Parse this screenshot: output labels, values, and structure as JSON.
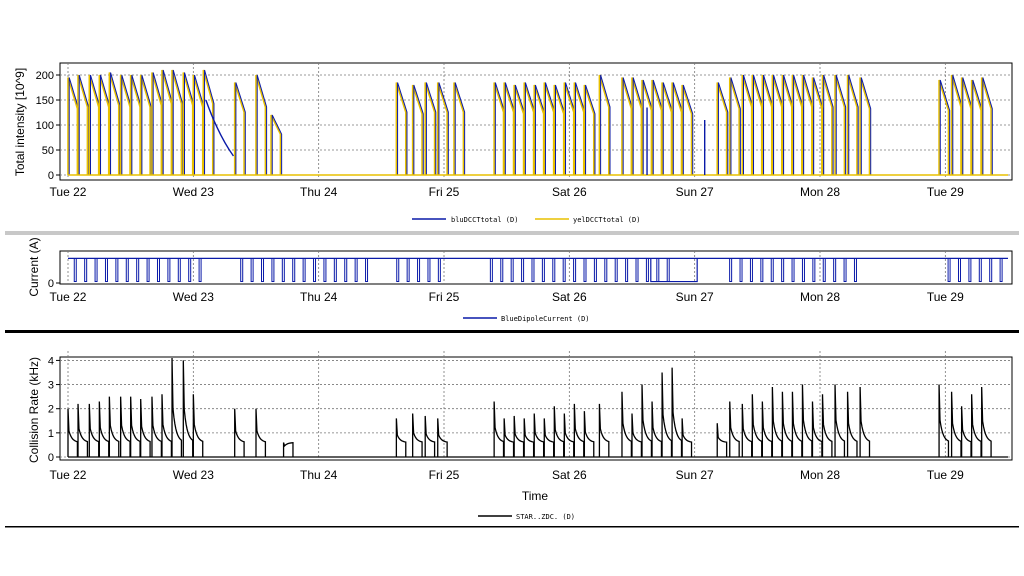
{
  "chart_data": [
    {
      "type": "line",
      "ylabel": "Total intensity [10^9]",
      "yticks": [
        "0",
        "50",
        "100",
        "150",
        "200"
      ],
      "ylim": [
        0,
        210
      ],
      "xlim": [
        0,
        7.5
      ],
      "xticks": [
        "Tue 22",
        "Wed 23",
        "Thu 24",
        "Fri 25",
        "Sat 26",
        "Sun 27",
        "Mon 28",
        "Tue 29"
      ],
      "grid": true,
      "legend_position": "bottom",
      "series": [
        {
          "name": "bluDCCTtotal (D)",
          "color": "#0a1aa8"
        },
        {
          "name": "yelDCCTtotal (D)",
          "color": "#e8c000"
        }
      ],
      "fills": [
        [
          0.0,
          195
        ],
        [
          0.08,
          200
        ],
        [
          0.17,
          200
        ],
        [
          0.25,
          200
        ],
        [
          0.33,
          205
        ],
        [
          0.42,
          200
        ],
        [
          0.5,
          200
        ],
        [
          0.58,
          200
        ],
        [
          0.67,
          205
        ],
        [
          0.75,
          210
        ],
        [
          0.83,
          210
        ],
        [
          0.92,
          205
        ],
        [
          1.0,
          200
        ],
        [
          1.08,
          210
        ],
        [
          1.33,
          185
        ],
        [
          1.5,
          200
        ],
        [
          1.62,
          120
        ],
        [
          2.62,
          185
        ],
        [
          2.75,
          180
        ],
        [
          2.85,
          185
        ],
        [
          2.95,
          185
        ],
        [
          3.08,
          185
        ],
        [
          3.4,
          185
        ],
        [
          3.48,
          185
        ],
        [
          3.56,
          180
        ],
        [
          3.64,
          185
        ],
        [
          3.72,
          180
        ],
        [
          3.8,
          185
        ],
        [
          3.88,
          180
        ],
        [
          3.96,
          185
        ],
        [
          4.04,
          185
        ],
        [
          4.12,
          180
        ],
        [
          4.24,
          200
        ],
        [
          4.42,
          195
        ],
        [
          4.5,
          195
        ],
        [
          4.58,
          190
        ],
        [
          4.66,
          190
        ],
        [
          4.74,
          185
        ],
        [
          4.82,
          185
        ],
        [
          4.9,
          180
        ],
        [
          5.18,
          185
        ],
        [
          5.28,
          195
        ],
        [
          5.38,
          200
        ],
        [
          5.46,
          200
        ],
        [
          5.54,
          200
        ],
        [
          5.62,
          200
        ],
        [
          5.7,
          200
        ],
        [
          5.78,
          200
        ],
        [
          5.86,
          200
        ],
        [
          5.94,
          195
        ],
        [
          6.02,
          200
        ],
        [
          6.12,
          200
        ],
        [
          6.22,
          200
        ],
        [
          6.32,
          195
        ],
        [
          6.95,
          190
        ],
        [
          7.05,
          200
        ],
        [
          7.13,
          195
        ],
        [
          7.21,
          190
        ],
        [
          7.29,
          195
        ]
      ]
    },
    {
      "type": "line",
      "ylabel": "Current (A)",
      "yticks": [
        "0"
      ],
      "ylim": [
        0,
        1
      ],
      "xlim": [
        0,
        7.5
      ],
      "xticks": [
        "Tue 22",
        "Wed 23",
        "Thu 24",
        "Fri 25",
        "Sat 26",
        "Sun 27",
        "Mon 28",
        "Tue 29"
      ],
      "grid": true,
      "legend_position": "bottom",
      "series": [
        {
          "name": "BlueDipoleCurrent (D)",
          "color": "#0a1aa8"
        }
      ],
      "level": 0.85
    },
    {
      "type": "line",
      "xlabel": "Time",
      "ylabel": "Collision Rate (kHz)",
      "yticks": [
        "0",
        "1",
        "2",
        "3",
        "4"
      ],
      "ylim": [
        0,
        4.1
      ],
      "xlim": [
        0,
        7.5
      ],
      "xticks": [
        "Tue 22",
        "Wed 23",
        "Thu 24",
        "Fri 25",
        "Sat 26",
        "Sun 27",
        "Mon 28",
        "Tue 29"
      ],
      "grid": true,
      "legend_position": "bottom",
      "series": [
        {
          "name": "STAR..ZDC. (D)",
          "color": "#000000"
        }
      ],
      "fills": [
        [
          0.0,
          2.0
        ],
        [
          0.08,
          2.2
        ],
        [
          0.17,
          2.2
        ],
        [
          0.25,
          2.3
        ],
        [
          0.33,
          2.5
        ],
        [
          0.42,
          2.5
        ],
        [
          0.5,
          2.5
        ],
        [
          0.58,
          2.4
        ],
        [
          0.67,
          2.5
        ],
        [
          0.75,
          2.6
        ],
        [
          0.83,
          4.1
        ],
        [
          0.92,
          4.0
        ],
        [
          1.0,
          2.6
        ],
        [
          1.33,
          2.0
        ],
        [
          1.5,
          2.0
        ],
        [
          1.72,
          0.6
        ],
        [
          2.62,
          1.6
        ],
        [
          2.75,
          1.8
        ],
        [
          2.85,
          1.7
        ],
        [
          2.95,
          1.6
        ],
        [
          3.4,
          2.3
        ],
        [
          3.48,
          1.6
        ],
        [
          3.56,
          1.7
        ],
        [
          3.64,
          1.6
        ],
        [
          3.72,
          1.8
        ],
        [
          3.8,
          1.6
        ],
        [
          3.88,
          2.1
        ],
        [
          3.96,
          1.8
        ],
        [
          4.04,
          2.2
        ],
        [
          4.12,
          1.9
        ],
        [
          4.24,
          2.2
        ],
        [
          4.42,
          2.7
        ],
        [
          4.5,
          1.8
        ],
        [
          4.58,
          3.0
        ],
        [
          4.66,
          2.3
        ],
        [
          4.74,
          3.5
        ],
        [
          4.82,
          3.7
        ],
        [
          4.9,
          1.6
        ],
        [
          5.18,
          1.4
        ],
        [
          5.28,
          2.3
        ],
        [
          5.38,
          2.2
        ],
        [
          5.46,
          2.6
        ],
        [
          5.54,
          2.3
        ],
        [
          5.62,
          2.9
        ],
        [
          5.7,
          2.7
        ],
        [
          5.78,
          2.7
        ],
        [
          5.86,
          3.0
        ],
        [
          5.94,
          2.3
        ],
        [
          6.02,
          2.6
        ],
        [
          6.12,
          3.0
        ],
        [
          6.22,
          2.7
        ],
        [
          6.32,
          2.9
        ],
        [
          6.95,
          3.0
        ],
        [
          7.05,
          2.7
        ],
        [
          7.13,
          2.1
        ],
        [
          7.21,
          2.6
        ],
        [
          7.29,
          2.9
        ]
      ]
    }
  ]
}
